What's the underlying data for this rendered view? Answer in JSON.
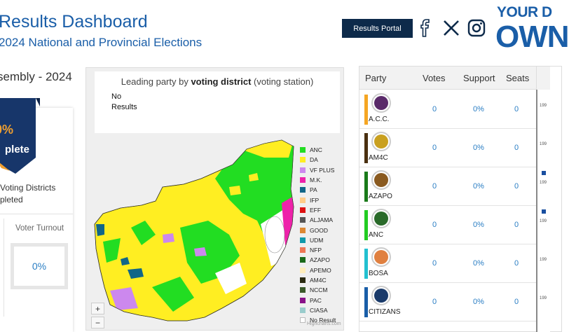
{
  "header": {
    "title": "Results Dashboard",
    "subtitle": "2024 National and Provincial Elections",
    "portal_button": "Results Portal",
    "social_icons": [
      "facebook-icon",
      "x-icon",
      "instagram-icon"
    ],
    "brand_line1": "YOUR D",
    "brand_line2": "OWN"
  },
  "left_panel": {
    "assembly_label": "sembly - 2024",
    "ribbon_percent": "0%",
    "ribbon_text": "plete",
    "voting_districts_line1": "Voting Districts",
    "voting_districts_line2": "pleted",
    "turnout_label": "Voter Turnout",
    "turnout_value": "0%"
  },
  "map": {
    "title_prefix": "Leading party by ",
    "title_bold": "voting district",
    "title_suffix": " (voting station)",
    "no_results_line1": "No",
    "no_results_line2": "Results",
    "zoom_in": "+",
    "zoom_out": "−",
    "credits": "Highcharts.com",
    "legend": [
      {
        "label": "ANC",
        "color": "#22dd22"
      },
      {
        "label": "DA",
        "color": "#ffee22"
      },
      {
        "label": "VF PLUS",
        "color": "#cc88ee"
      },
      {
        "label": "M.K.",
        "color": "#ee22aa"
      },
      {
        "label": "PA",
        "color": "#116688"
      },
      {
        "label": "IFP",
        "color": "#ffcc88"
      },
      {
        "label": "EFF",
        "color": "#dd1111"
      },
      {
        "label": "ALJAMA",
        "color": "#555555"
      },
      {
        "label": "GOOD",
        "color": "#dd8833"
      },
      {
        "label": "UDM",
        "color": "#1199aa"
      },
      {
        "label": "NFP",
        "color": "#ee7755"
      },
      {
        "label": "AZAPO",
        "color": "#1a6a1a"
      },
      {
        "label": "APEMO",
        "color": "#ffeebb"
      },
      {
        "label": "AM4C",
        "color": "#2a2a10"
      },
      {
        "label": "NCCM",
        "color": "#3a5a2a"
      },
      {
        "label": "PAC",
        "color": "#881188"
      },
      {
        "label": "CIASA",
        "color": "#99cccc"
      },
      {
        "label": "No Result",
        "color": "#ffffff"
      }
    ]
  },
  "table": {
    "headers": {
      "party": "Party",
      "votes": "Votes",
      "support": "Support",
      "seats": "Seats"
    },
    "rows": [
      {
        "name": "A.C.C.",
        "votes": "0",
        "support": "0%",
        "seats": "0",
        "bar_color": "#f5a623",
        "logo_color": "#5a2a6a"
      },
      {
        "name": "AM4C",
        "votes": "0",
        "support": "0%",
        "seats": "0",
        "bar_color": "#4a3010",
        "logo_color": "#c9a020"
      },
      {
        "name": "AZAPO",
        "votes": "0",
        "support": "0%",
        "seats": "0",
        "bar_color": "#1a7a1a",
        "logo_color": "#8a5a20"
      },
      {
        "name": "ANC",
        "votes": "0",
        "support": "0%",
        "seats": "0",
        "bar_color": "#22cc22",
        "logo_color": "#2a6a2a"
      },
      {
        "name": "BOSA",
        "votes": "0",
        "support": "0%",
        "seats": "0",
        "bar_color": "#22c0d0",
        "logo_color": "#e08040"
      },
      {
        "name": "CITIZANS",
        "votes": "0",
        "support": "0%",
        "seats": "0",
        "bar_color": "#1a5ea8",
        "logo_color": "#1a3a6a"
      }
    ],
    "strip_years": [
      "199",
      "199",
      "199",
      "199",
      "199",
      "199"
    ]
  }
}
